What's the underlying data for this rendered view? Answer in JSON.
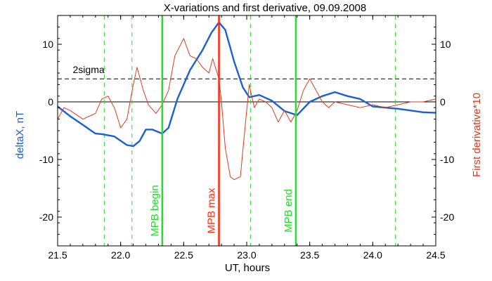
{
  "chart_data": {
    "type": "line",
    "title": "X-variations and first derivative, 09.09.2008",
    "xlabel": "UT, hours",
    "ylabel": "deltaX, nT",
    "y2label": "First derivative*10",
    "xlim": [
      21.5,
      24.5
    ],
    "ylim": [
      -25,
      15
    ],
    "y2lim": [
      -25,
      15
    ],
    "xticks": [
      "21.5",
      "22.0",
      "22.5",
      "23.0",
      "23.5",
      "24.0",
      "24.5"
    ],
    "yticks": [
      "10",
      "0",
      "-10",
      "-20"
    ],
    "y2ticks": [
      "10",
      "0",
      "-10",
      "-20"
    ],
    "colors": {
      "deltaX": "#1a5fd6",
      "derivative": "#e03a1e",
      "mpb": "#22e02a",
      "max": "#ff2a10",
      "dashed": "#2fd42f"
    },
    "threshold": {
      "label": "2sigma",
      "y": 4
    },
    "zero_line": 0,
    "series": [
      {
        "axis": "left",
        "x": [
          21.5,
          21.6,
          21.7,
          21.8,
          21.85,
          21.95,
          22.05,
          22.1,
          22.15,
          22.2,
          22.25,
          22.33,
          22.38,
          22.45,
          22.55,
          22.65,
          22.72,
          22.78,
          22.83,
          22.9,
          22.97,
          23.02,
          23.1,
          23.2,
          23.3,
          23.4,
          23.5,
          23.6,
          23.7,
          23.8,
          23.9,
          24.0,
          24.1,
          24.2,
          24.3,
          24.4,
          24.5
        ],
        "y": [
          -0.8,
          -2.5,
          -4.0,
          -5.5,
          -5.6,
          -6.0,
          -7.5,
          -7.7,
          -6.8,
          -4.8,
          -4.8,
          -5.5,
          -4.5,
          0.5,
          5.5,
          9.0,
          12.0,
          13.8,
          12.5,
          7.0,
          2.5,
          0.8,
          1.2,
          0.2,
          -1.6,
          -2.3,
          0.0,
          1.0,
          1.7,
          1.0,
          0.5,
          -0.8,
          -1.0,
          -1.2,
          -1.5,
          -1.8,
          -1.9
        ]
      },
      {
        "axis": "right",
        "x": [
          21.5,
          21.55,
          21.6,
          21.7,
          21.8,
          21.85,
          21.9,
          21.95,
          22.0,
          22.05,
          22.1,
          22.13,
          22.18,
          22.22,
          22.28,
          22.33,
          22.38,
          22.43,
          22.5,
          22.55,
          22.6,
          22.65,
          22.7,
          22.73,
          22.78,
          22.8,
          22.83,
          22.87,
          22.9,
          22.95,
          22.98,
          23.02,
          23.06,
          23.1,
          23.15,
          23.2,
          23.25,
          23.3,
          23.35,
          23.4,
          23.45,
          23.5,
          23.55,
          23.6,
          23.65,
          23.7,
          23.8,
          23.9,
          24.0,
          24.1,
          24.2,
          24.3,
          24.4,
          24.5
        ],
        "y": [
          -3.0,
          -1.0,
          -1.5,
          -3.0,
          -2.0,
          0.5,
          1.0,
          -1.0,
          -4.5,
          -3.0,
          3.0,
          6.0,
          2.0,
          -0.5,
          -2.0,
          -0.5,
          2.0,
          8.0,
          11.0,
          8.0,
          7.5,
          6.0,
          5.0,
          7.5,
          4.0,
          0.0,
          -8.0,
          -13.0,
          -13.5,
          -13.0,
          -6.0,
          3.0,
          -1.0,
          0.5,
          0.0,
          -1.0,
          -3.5,
          -1.5,
          -3.5,
          -1.5,
          2.0,
          4.0,
          2.0,
          0.0,
          -1.0,
          0.0,
          -0.5,
          -1.0,
          -0.5,
          -1.0,
          -0.5,
          0.0,
          0.0,
          0.5
        ]
      }
    ],
    "markers": [
      {
        "x": 22.33,
        "label": "MPB begin",
        "style": "green"
      },
      {
        "x": 22.78,
        "label": "MPB max",
        "style": "red"
      },
      {
        "x": 23.39,
        "label": "MPB end",
        "style": "green"
      }
    ],
    "dashed_verticals": [
      21.87,
      22.09,
      23.03,
      24.18
    ]
  }
}
